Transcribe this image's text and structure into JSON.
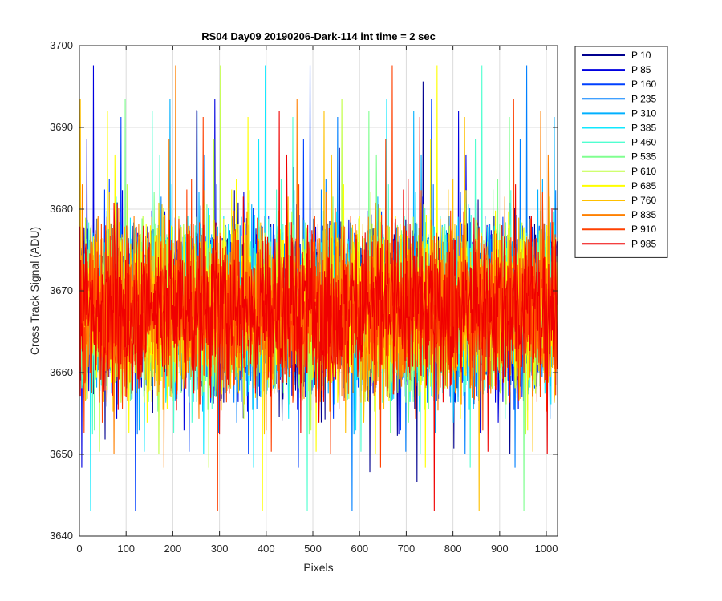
{
  "chart_data": {
    "type": "line",
    "title": "RS04 Day09 20190206-Dark-114 int time = 2 sec",
    "xlabel": "Pixels",
    "ylabel": "Cross Track Signal (ADU)",
    "xlim": [
      0,
      1024
    ],
    "ylim": [
      3640,
      3700
    ],
    "xticks": [
      0,
      100,
      200,
      300,
      400,
      500,
      600,
      700,
      800,
      900,
      1000
    ],
    "yticks": [
      3640,
      3650,
      3660,
      3670,
      3680,
      3690,
      3700
    ],
    "grid": true,
    "legend_position": "outside-top-right",
    "n_points": 1024,
    "series_mean": 3668,
    "series_range": [
      3640,
      3698
    ],
    "series": [
      {
        "name": "P 10",
        "color": "#00008f"
      },
      {
        "name": "P 85",
        "color": "#0000e0"
      },
      {
        "name": "P 160",
        "color": "#0040ff"
      },
      {
        "name": "P 235",
        "color": "#0080ff"
      },
      {
        "name": "P 310",
        "color": "#00b0ff"
      },
      {
        "name": "P 385",
        "color": "#10e8ff"
      },
      {
        "name": "P 460",
        "color": "#50ffd0"
      },
      {
        "name": "P 535",
        "color": "#80ff90"
      },
      {
        "name": "P 610",
        "color": "#c0ff40"
      },
      {
        "name": "P 685",
        "color": "#ffff00"
      },
      {
        "name": "P 760",
        "color": "#ffc000"
      },
      {
        "name": "P 835",
        "color": "#ff8000"
      },
      {
        "name": "P 910",
        "color": "#ff4000"
      },
      {
        "name": "P 985",
        "color": "#f00000"
      }
    ]
  }
}
